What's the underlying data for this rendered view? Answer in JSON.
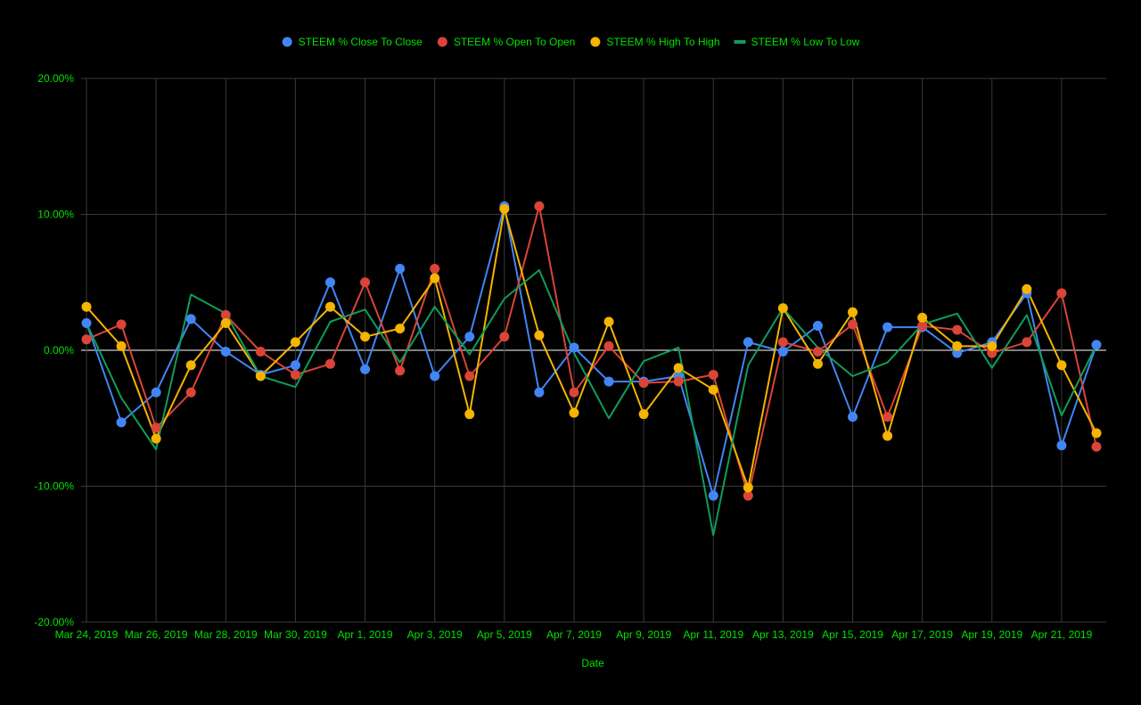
{
  "chart_data": {
    "type": "line",
    "xlabel": "Date",
    "ylabel": "",
    "ylim": [
      -20,
      20
    ],
    "yticks": [
      20,
      10,
      0,
      -10,
      -20
    ],
    "ytick_labels": [
      "20.00%",
      "10.00%",
      "0.00%",
      "-10.00%",
      "-20.00%"
    ],
    "x": [
      "Mar 24, 2019",
      "Mar 25, 2019",
      "Mar 26, 2019",
      "Mar 27, 2019",
      "Mar 28, 2019",
      "Mar 29, 2019",
      "Mar 30, 2019",
      "Mar 31, 2019",
      "Apr 1, 2019",
      "Apr 2, 2019",
      "Apr 3, 2019",
      "Apr 4, 2019",
      "Apr 5, 2019",
      "Apr 6, 2019",
      "Apr 7, 2019",
      "Apr 8, 2019",
      "Apr 9, 2019",
      "Apr 10, 2019",
      "Apr 11, 2019",
      "Apr 12, 2019",
      "Apr 13, 2019",
      "Apr 14, 2019",
      "Apr 15, 2019",
      "Apr 16, 2019",
      "Apr 17, 2019",
      "Apr 18, 2019",
      "Apr 19, 2019",
      "Apr 20, 2019",
      "Apr 21, 2019",
      "Apr 22, 2019"
    ],
    "xtick_labels": [
      "Mar 24, 2019",
      "Mar 26, 2019",
      "Mar 28, 2019",
      "Mar 30, 2019",
      "Apr 1, 2019",
      "Apr 3, 2019",
      "Apr 5, 2019",
      "Apr 7, 2019",
      "Apr 9, 2019",
      "Apr 11, 2019",
      "Apr 13, 2019",
      "Apr 15, 2019",
      "Apr 17, 2019",
      "Apr 19, 2019",
      "Apr 21, 2019"
    ],
    "xtick_dates": [
      "Mar 24, 2019",
      "Mar 26, 2019",
      "Mar 28, 2019",
      "Mar 30, 2019",
      "Apr 1, 2019",
      "Apr 3, 2019",
      "Apr 5, 2019",
      "Apr 7, 2019",
      "Apr 9, 2019",
      "Apr 11, 2019",
      "Apr 13, 2019",
      "Apr 15, 2019",
      "Apr 17, 2019",
      "Apr 19, 2019",
      "Apr 21, 2019"
    ],
    "grid": true,
    "legend_position": "top",
    "series": [
      {
        "name": "STEEM % Close To Close",
        "color": "#4285f4",
        "markers": true,
        "values": [
          2.0,
          -5.3,
          -3.1,
          2.3,
          -0.1,
          -1.8,
          -1.1,
          5.0,
          -1.4,
          6.0,
          -1.9,
          1.0,
          10.6,
          -3.1,
          0.2,
          -2.3,
          -2.3,
          -1.9,
          -10.7,
          0.6,
          -0.1,
          1.8,
          -4.9,
          1.7,
          1.7,
          -0.2,
          0.6,
          4.2,
          -7.0,
          0.4
        ]
      },
      {
        "name": "STEEM % Open To Open",
        "color": "#db4437",
        "markers": true,
        "values": [
          0.8,
          1.9,
          -5.7,
          -3.1,
          2.6,
          -0.1,
          -1.8,
          -1.0,
          5.0,
          -1.5,
          6.0,
          -1.9,
          1.0,
          10.6,
          -3.1,
          0.3,
          -2.4,
          -2.3,
          -1.8,
          -10.7,
          0.6,
          -0.1,
          1.9,
          -4.9,
          1.8,
          1.5,
          -0.2,
          0.6,
          4.2,
          -7.1
        ]
      },
      {
        "name": "STEEM % High To High",
        "color": "#f4b400",
        "markers": true,
        "values": [
          3.2,
          0.3,
          -6.5,
          -1.1,
          2.0,
          -1.9,
          0.6,
          3.2,
          1.0,
          1.6,
          5.3,
          -4.7,
          10.4,
          1.1,
          -4.6,
          2.1,
          -4.7,
          -1.3,
          -2.9,
          -10.1,
          3.1,
          -1.0,
          2.8,
          -6.3,
          2.4,
          0.3,
          0.3,
          4.5,
          -1.1,
          -6.1
        ]
      },
      {
        "name": "STEEM % Low To Low",
        "color": "#0f9d58",
        "markers": false,
        "values": [
          2.0,
          -3.5,
          -7.3,
          4.1,
          2.7,
          -1.9,
          -2.7,
          2.1,
          3.0,
          -0.9,
          3.2,
          -0.3,
          3.8,
          5.9,
          -0.2,
          -5.0,
          -0.8,
          0.2,
          -13.6,
          -1.1,
          3.1,
          0.2,
          -1.9,
          -0.9,
          1.9,
          2.7,
          -1.3,
          2.6,
          -4.8,
          0.4
        ]
      }
    ]
  },
  "colors": {
    "background": "#000000",
    "text": "#00e300",
    "grid": "#3a3a3a",
    "zero_line": "#ffffff"
  }
}
